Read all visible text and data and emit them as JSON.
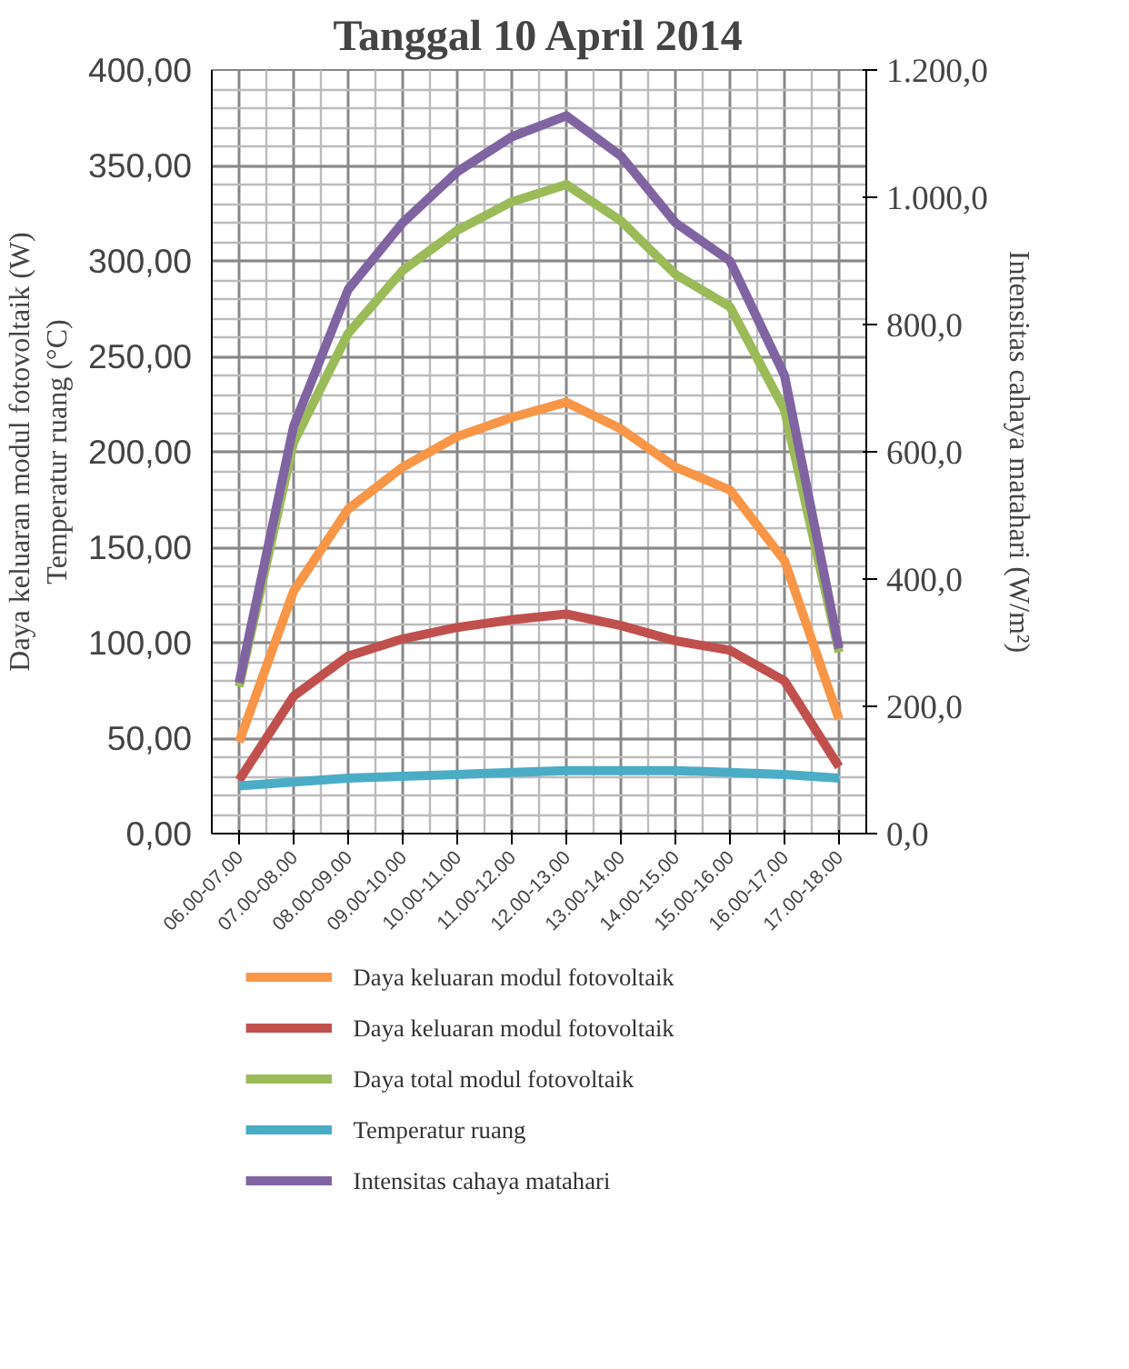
{
  "chart_data": {
    "type": "line",
    "title": "Tanggal 10 April 2014",
    "ylabel": "Daya keluaran modul fotovoltaik (W)\nTemperatur ruang (°C)",
    "y2label": "Intensitas cahaya matahari (W/m²)",
    "categories": [
      "06.00-07.00",
      "07.00-08.00",
      "08.00-09.00",
      "09.00-10.00",
      "10.00-11.00",
      "11.00-12.00",
      "12.00-13.00",
      "13.00-14.00",
      "14.00-15.00",
      "15.00-16.00",
      "16.00-17.00",
      "17.00-18.00"
    ],
    "series": [
      {
        "name": "Daya keluaran modul fotovoltaik",
        "color": "#f79646",
        "values": [
          48,
          127,
          170,
          192,
          208,
          218,
          226,
          212,
          192,
          180,
          143,
          60
        ]
      },
      {
        "name": "Daya keluaran modul fotovoltaik",
        "color": "#c0504d",
        "values": [
          28,
          72,
          93,
          102,
          108,
          112,
          115,
          109,
          101,
          96,
          80,
          35
        ]
      },
      {
        "name": "Daya total modul fotovoltaik",
        "color": "#9bbb59",
        "values": [
          77,
          205,
          262,
          295,
          316,
          331,
          340,
          321,
          293,
          276,
          222,
          95
        ]
      },
      {
        "name": "Temperatur ruang",
        "color": "#4bacc6",
        "values": [
          25,
          27,
          29,
          30,
          31,
          32,
          33,
          33,
          33,
          32,
          31,
          29
        ]
      },
      {
        "name": "Intensitas cahaya matahari",
        "color": "#8064a2",
        "axis": "y2",
        "values": [
          237,
          640,
          855,
          960,
          1040,
          1095,
          1128,
          1065,
          960,
          900,
          720,
          291
        ]
      }
    ],
    "ylim": [
      0,
      400
    ],
    "yticks": [
      {
        "value": 0,
        "label": "0,00"
      },
      {
        "value": 50,
        "label": "50,00"
      },
      {
        "value": 100,
        "label": "100,00"
      },
      {
        "value": 150,
        "label": "150,00"
      },
      {
        "value": 200,
        "label": "200,00"
      },
      {
        "value": 250,
        "label": "250,00"
      },
      {
        "value": 300,
        "label": "300,00"
      },
      {
        "value": 350,
        "label": "350,00"
      },
      {
        "value": 400,
        "label": "400,00"
      }
    ],
    "y2lim": [
      0,
      1200
    ],
    "y2ticks": [
      {
        "value": 0,
        "label": "0,0"
      },
      {
        "value": 200,
        "label": "200,0"
      },
      {
        "value": 400,
        "label": "400,0"
      },
      {
        "value": 600,
        "label": "600,0"
      },
      {
        "value": 800,
        "label": "800,0"
      },
      {
        "value": 1000,
        "label": "1.000,0"
      },
      {
        "value": 1200,
        "label": "1.200,0"
      }
    ],
    "grid": true,
    "legend": "bottom",
    "marker": "none",
    "line_style": "solid"
  }
}
